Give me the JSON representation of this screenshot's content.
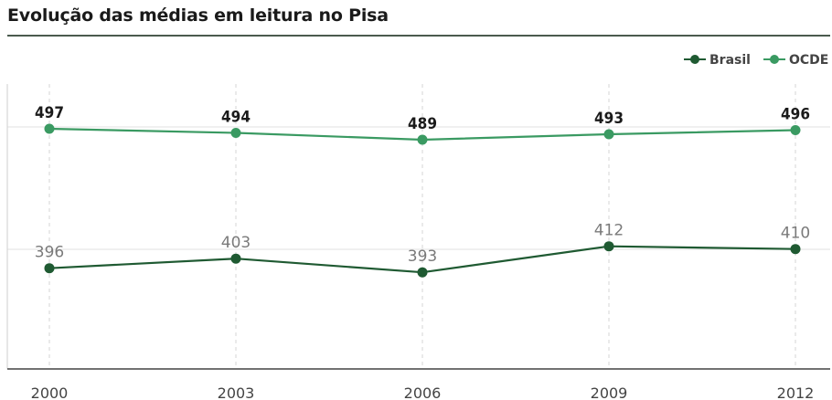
{
  "title": "Evolução das médias em leitura no Pisa",
  "colors": {
    "brasil": "#1f5a32",
    "ocde": "#3a9a62",
    "grid": "#d6d6d6",
    "axis": "#444444"
  },
  "chart_data": {
    "type": "line",
    "title": "Evolução das médias em leitura no Pisa",
    "x": [
      "2000",
      "2003",
      "2006",
      "2009",
      "2012"
    ],
    "series": [
      {
        "name": "Brasil",
        "values": [
          396,
          403,
          393,
          412,
          410
        ]
      },
      {
        "name": "OCDE",
        "values": [
          497,
          494,
          489,
          493,
          496
        ]
      }
    ],
    "xlabel": "",
    "ylabel": "",
    "grid": "vertical dashed + horizontal at series levels",
    "legend": "top-right"
  }
}
